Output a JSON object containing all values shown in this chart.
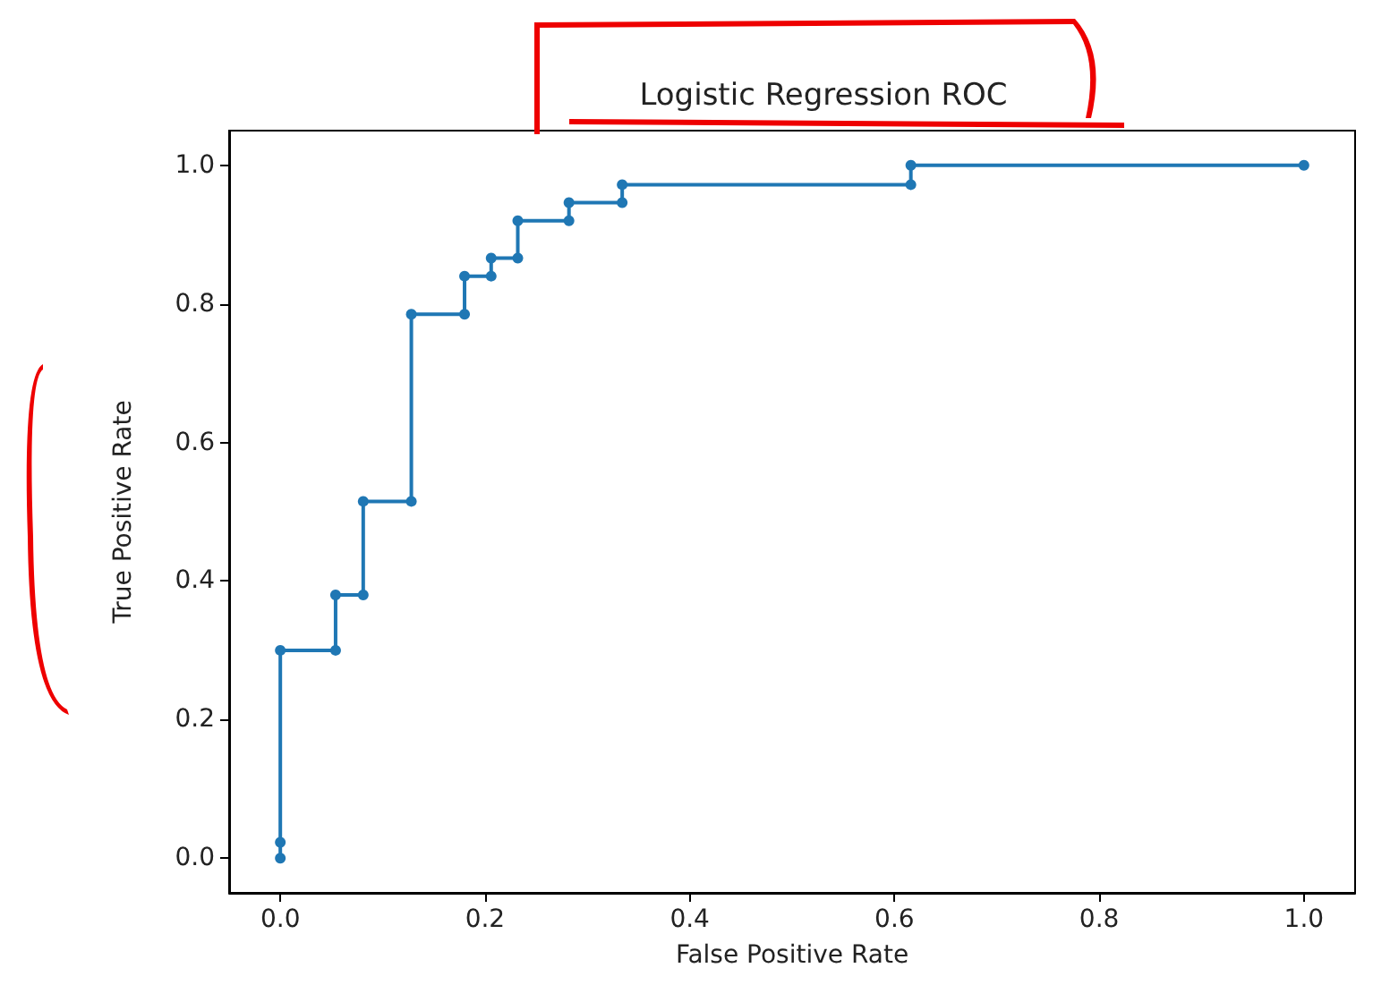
{
  "chart_data": {
    "type": "line",
    "title": "Logistic Regression ROC",
    "xlabel": "False Positive Rate",
    "ylabel": "True Positive Rate",
    "x": [
      0,
      0,
      0,
      0.054,
      0.054,
      0.081,
      0.081,
      0.128,
      0.128,
      0.18,
      0.18,
      0.206,
      0.206,
      0.232,
      0.232,
      0.282,
      0.282,
      0.334,
      0.334,
      0.616,
      0.616,
      1
    ],
    "series": [
      {
        "color": "#1f77b4",
        "values": [
          0,
          0.023,
          0.3,
          0.3,
          0.38,
          0.38,
          0.515,
          0.515,
          0.785,
          0.785,
          0.84,
          0.84,
          0.866,
          0.866,
          0.92,
          0.92,
          0.946,
          0.946,
          0.972,
          0.972,
          1,
          1
        ]
      }
    ],
    "xlim": [
      -0.05,
      1.05
    ],
    "ylim": [
      -0.05,
      1.05
    ],
    "xticks": [
      {
        "value": 0,
        "label": "0.0"
      },
      {
        "value": 0.2,
        "label": "0.2"
      },
      {
        "value": 0.4,
        "label": "0.4"
      },
      {
        "value": 0.6,
        "label": "0.6"
      },
      {
        "value": 0.8,
        "label": "0.8"
      },
      {
        "value": 1,
        "label": "1.0"
      }
    ],
    "yticks": [
      {
        "value": 0,
        "label": "0.0"
      },
      {
        "value": 0.2,
        "label": "0.2"
      },
      {
        "value": 0.4,
        "label": "0.4"
      },
      {
        "value": 0.6,
        "label": "0.6"
      },
      {
        "value": 0.8,
        "label": "0.8"
      },
      {
        "value": 1,
        "label": "1.0"
      }
    ],
    "marker": "circle",
    "line_style": "solid",
    "grid": false
  }
}
